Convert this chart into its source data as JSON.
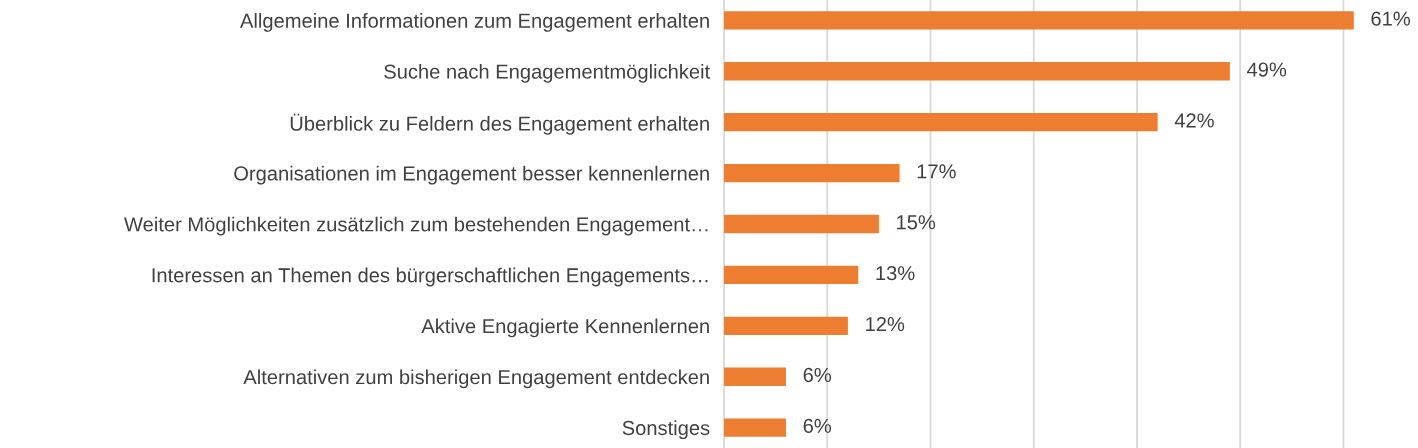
{
  "chart_data": {
    "type": "bar",
    "orientation": "horizontal",
    "categories": [
      "Allgemeine Informationen zum Engagement erhalten",
      "Suche nach Engagementmöglichkeit",
      "Überblick zu Feldern des Engagement erhalten",
      "Organisationen im Engagement besser kennenlernen",
      "Weiter Möglichkeiten zusätzlich zum bestehenden Engagement…",
      "Interessen an Themen des bürgerschaftlichen Engagements…",
      "Aktive Engagierte Kennenlernen",
      "Alternativen zum bisherigen Engagement entdecken",
      "Sonstiges"
    ],
    "values": [
      61,
      49,
      42,
      17,
      15,
      13,
      12,
      6,
      6
    ],
    "value_labels": [
      "61%",
      "49%",
      "42%",
      "17%",
      "15%",
      "13%",
      "12%",
      "6%",
      "6%"
    ],
    "color": "#ed7d31",
    "xticks": [
      {
        "value": 0,
        "label": null
      },
      {
        "value": 10,
        "label": null
      },
      {
        "value": 20,
        "label": null
      },
      {
        "value": 30,
        "label": null
      },
      {
        "value": 40,
        "label": null
      },
      {
        "value": 50,
        "label": null
      },
      {
        "value": 60,
        "label": null
      }
    ],
    "grid": "x",
    "legend": false
  }
}
